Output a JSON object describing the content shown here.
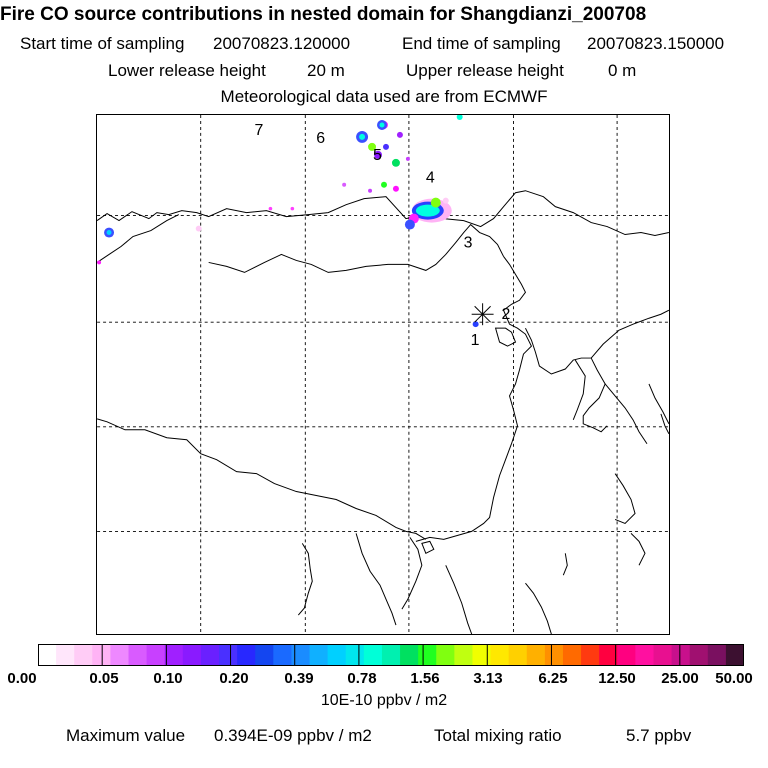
{
  "header": {
    "title": "Fire CO source contributions in nested domain for Shangdianzi_200708",
    "start_label": "Start time of sampling",
    "start_value": "20070823.120000",
    "end_label": "End time of sampling",
    "end_value": "20070823.150000",
    "lower_label": "Lower release height",
    "lower_value": "20 m",
    "upper_label": "Upper release height",
    "upper_value": "0 m",
    "met_note": "Meteorological data used are from ECMWF"
  },
  "map": {
    "labels": [
      "7",
      "6",
      "5",
      "4",
      "3",
      "2",
      "1"
    ],
    "station_marker": "asterisk"
  },
  "colorbar": {
    "ticks": [
      "0.00",
      "0.05",
      "0.10",
      "0.20",
      "0.39",
      "0.78",
      "1.56",
      "3.13",
      "6.25",
      "12.50",
      "25.00",
      "50.00"
    ],
    "colors": [
      "#ffffff",
      "#ffe6fb",
      "#ffccf6",
      "#ffb3f5",
      "#ee88ff",
      "#d95bff",
      "#c840ff",
      "#a020ff",
      "#8a1aff",
      "#6a20ff",
      "#4a30ff",
      "#2828ff",
      "#1446f0",
      "#1a6aff",
      "#1a8cff",
      "#10b0ff",
      "#00d0ff",
      "#00e6ee",
      "#00ffd8",
      "#00f0b0",
      "#00e060",
      "#20ff20",
      "#80ff10",
      "#c0ff10",
      "#f0ff00",
      "#ffe800",
      "#ffd000",
      "#ffb000",
      "#ff9000",
      "#ff6a00",
      "#ff3a10",
      "#ff0040",
      "#ff0080",
      "#ff10a0",
      "#e81090",
      "#c8108c",
      "#a01070",
      "#7a1060",
      "#3c1030"
    ],
    "units": "10E-10 ppbv / m2"
  },
  "footer": {
    "max_label": "Maximum value",
    "max_value": "0.394E-09 ppbv / m2",
    "total_label": "Total mixing ratio",
    "total_value": "5.7 ppbv"
  }
}
